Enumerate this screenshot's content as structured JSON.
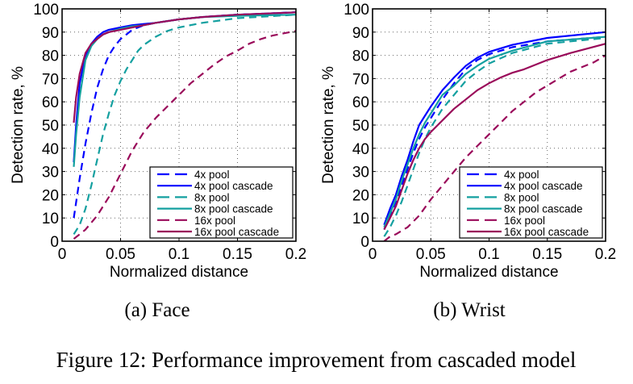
{
  "figure": {
    "caption": "Figure 12: Performance improvement from cascaded model"
  },
  "chart_data": [
    {
      "type": "line",
      "title": "",
      "subcaption": "(a) Face",
      "xlabel": "Normalized distance",
      "ylabel": "Detection rate, %",
      "xlim": [
        0,
        0.2
      ],
      "ylim": [
        0,
        100
      ],
      "xticks": [
        0,
        0.05,
        0.1,
        0.15,
        0.2
      ],
      "xtick_labels": [
        "0",
        "0.05",
        "0.1",
        "0.15",
        "0.2"
      ],
      "yticks": [
        0,
        10,
        20,
        30,
        40,
        50,
        60,
        70,
        80,
        90,
        100
      ],
      "ytick_labels": [
        "0",
        "10",
        "20",
        "30",
        "40",
        "50",
        "60",
        "70",
        "80",
        "90",
        "100"
      ],
      "grid": true,
      "legend_position": "bottom-right",
      "series": [
        {
          "name": "4x pool",
          "color": "#0000ff",
          "style": "dashed",
          "x": [
            0.01,
            0.015,
            0.02,
            0.025,
            0.03,
            0.035,
            0.04,
            0.045,
            0.05,
            0.055,
            0.06,
            0.07,
            0.08,
            0.1,
            0.12,
            0.15,
            0.2
          ],
          "y": [
            10,
            27,
            42,
            55,
            66,
            74,
            80,
            84,
            87,
            89,
            91,
            93,
            94,
            95.5,
            96.5,
            97.5,
            98.5
          ]
        },
        {
          "name": "4x pool cascade",
          "color": "#0000ff",
          "style": "solid",
          "x": [
            0.01,
            0.012,
            0.015,
            0.02,
            0.025,
            0.03,
            0.035,
            0.04,
            0.05,
            0.06,
            0.07,
            0.08,
            0.1,
            0.12,
            0.15,
            0.2
          ],
          "y": [
            34,
            50,
            68,
            80,
            85,
            88,
            90,
            91,
            92,
            93,
            93.5,
            94,
            95.5,
            96.5,
            97.5,
            98.5
          ]
        },
        {
          "name": "8x pool",
          "color": "#14a0a0",
          "style": "dashed",
          "x": [
            0.01,
            0.015,
            0.02,
            0.025,
            0.03,
            0.035,
            0.04,
            0.045,
            0.05,
            0.055,
            0.06,
            0.065,
            0.07,
            0.08,
            0.09,
            0.1,
            0.12,
            0.15,
            0.2
          ],
          "y": [
            3,
            7,
            14,
            24,
            35,
            46,
            55,
            63,
            69,
            74,
            78,
            82,
            84.5,
            88,
            90.5,
            92,
            94,
            96,
            97.5
          ]
        },
        {
          "name": "8x pool cascade",
          "color": "#14a0a0",
          "style": "solid",
          "x": [
            0.01,
            0.012,
            0.015,
            0.02,
            0.025,
            0.03,
            0.035,
            0.04,
            0.05,
            0.06,
            0.07,
            0.08,
            0.1,
            0.12,
            0.15,
            0.2
          ],
          "y": [
            32,
            46,
            62,
            78,
            84,
            87,
            89,
            90,
            91.5,
            92.5,
            93,
            94,
            95.5,
            96.5,
            97,
            97.5
          ]
        },
        {
          "name": "16x pool",
          "color": "#9a0a5a",
          "style": "dashed",
          "x": [
            0.01,
            0.015,
            0.02,
            0.03,
            0.04,
            0.05,
            0.06,
            0.07,
            0.08,
            0.09,
            0.1,
            0.11,
            0.12,
            0.13,
            0.14,
            0.15,
            0.16,
            0.17,
            0.18,
            0.19,
            0.2
          ],
          "y": [
            1,
            3,
            5,
            11,
            19,
            29,
            39,
            47,
            53,
            58,
            63,
            68,
            72,
            76,
            79.5,
            82,
            85,
            87,
            88.5,
            89.5,
            90.5
          ]
        },
        {
          "name": "16x pool cascade",
          "color": "#9a0a5a",
          "style": "solid",
          "x": [
            0.01,
            0.012,
            0.015,
            0.02,
            0.025,
            0.03,
            0.035,
            0.04,
            0.05,
            0.06,
            0.07,
            0.08,
            0.1,
            0.12,
            0.15,
            0.2
          ],
          "y": [
            51,
            62,
            72,
            81,
            85,
            87,
            89,
            90,
            91,
            92,
            93,
            94,
            95.5,
            96.5,
            97.5,
            98.5
          ]
        }
      ]
    },
    {
      "type": "line",
      "title": "",
      "subcaption": "(b) Wrist",
      "xlabel": "Normalized distance",
      "ylabel": "Detection rate, %",
      "xlim": [
        0,
        0.2
      ],
      "ylim": [
        0,
        100
      ],
      "xticks": [
        0,
        0.05,
        0.1,
        0.15,
        0.2
      ],
      "xtick_labels": [
        "0",
        "0.05",
        "0.1",
        "0.15",
        "0.2"
      ],
      "yticks": [
        0,
        10,
        20,
        30,
        40,
        50,
        60,
        70,
        80,
        90,
        100
      ],
      "ytick_labels": [
        "0",
        "10",
        "20",
        "30",
        "40",
        "50",
        "60",
        "70",
        "80",
        "90",
        "100"
      ],
      "grid": true,
      "legend_position": "bottom-right",
      "series": [
        {
          "name": "4x pool",
          "color": "#0000ff",
          "style": "dashed",
          "x": [
            0.01,
            0.015,
            0.02,
            0.025,
            0.03,
            0.035,
            0.04,
            0.045,
            0.05,
            0.06,
            0.07,
            0.08,
            0.09,
            0.1,
            0.12,
            0.15,
            0.2
          ],
          "y": [
            5,
            11,
            17,
            24,
            31,
            38,
            44,
            49,
            53,
            61,
            68,
            74,
            78,
            80.5,
            83.5,
            86,
            88
          ]
        },
        {
          "name": "4x pool cascade",
          "color": "#0000ff",
          "style": "solid",
          "x": [
            0.01,
            0.015,
            0.02,
            0.025,
            0.03,
            0.035,
            0.04,
            0.045,
            0.05,
            0.06,
            0.07,
            0.08,
            0.09,
            0.1,
            0.12,
            0.15,
            0.2
          ],
          "y": [
            7,
            14,
            20,
            28,
            35,
            43,
            50,
            54,
            58,
            65,
            70.5,
            75.5,
            79,
            81.5,
            84.5,
            87.5,
            90
          ]
        },
        {
          "name": "8x pool",
          "color": "#14a0a0",
          "style": "dashed",
          "x": [
            0.01,
            0.015,
            0.02,
            0.025,
            0.03,
            0.035,
            0.04,
            0.045,
            0.05,
            0.06,
            0.07,
            0.08,
            0.09,
            0.1,
            0.12,
            0.15,
            0.2
          ],
          "y": [
            2,
            6,
            11,
            17,
            24,
            31,
            38,
            44,
            49,
            57,
            63,
            69,
            73,
            76.5,
            81,
            85,
            87.5
          ]
        },
        {
          "name": "8x pool cascade",
          "color": "#14a0a0",
          "style": "solid",
          "x": [
            0.01,
            0.015,
            0.02,
            0.025,
            0.03,
            0.035,
            0.04,
            0.045,
            0.05,
            0.06,
            0.07,
            0.08,
            0.09,
            0.1,
            0.12,
            0.15,
            0.2
          ],
          "y": [
            6,
            12,
            18,
            26,
            33,
            40,
            46,
            51,
            55,
            63,
            67,
            72,
            75.5,
            78.5,
            82,
            86,
            88
          ]
        },
        {
          "name": "16x pool",
          "color": "#9a0a5a",
          "style": "dashed",
          "x": [
            0.01,
            0.015,
            0.02,
            0.03,
            0.04,
            0.05,
            0.06,
            0.07,
            0.08,
            0.09,
            0.1,
            0.11,
            0.12,
            0.13,
            0.14,
            0.15,
            0.16,
            0.17,
            0.18,
            0.19,
            0.2
          ],
          "y": [
            0,
            2,
            3,
            6,
            11,
            18,
            24,
            30,
            36,
            41,
            46,
            51,
            56,
            60,
            64,
            67,
            70,
            73,
            75,
            77,
            80
          ]
        },
        {
          "name": "16x pool cascade",
          "color": "#9a0a5a",
          "style": "solid",
          "x": [
            0.01,
            0.015,
            0.02,
            0.025,
            0.03,
            0.035,
            0.04,
            0.045,
            0.05,
            0.06,
            0.07,
            0.08,
            0.09,
            0.1,
            0.11,
            0.12,
            0.13,
            0.15,
            0.17,
            0.2
          ],
          "y": [
            5,
            10,
            15,
            22,
            29,
            35,
            40,
            44,
            47,
            52,
            57,
            61,
            65,
            68,
            70.5,
            72.5,
            74,
            78,
            81,
            85
          ]
        }
      ]
    }
  ]
}
